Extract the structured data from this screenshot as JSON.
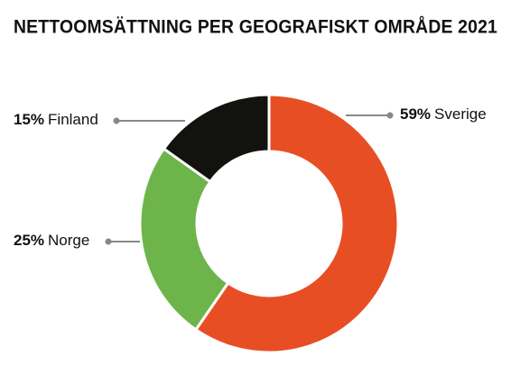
{
  "chart_data": {
    "type": "donut",
    "title": "NETTOOMSÄTTNING PER GEOGRAFISKT OMRÅDE 2021",
    "categories": [
      "Sverige",
      "Norge",
      "Finland"
    ],
    "values": [
      59,
      25,
      15
    ],
    "value_labels": [
      "59%",
      "25%",
      "15%"
    ],
    "colors": [
      "#e84e24",
      "#6db54a",
      "#12130f"
    ]
  }
}
